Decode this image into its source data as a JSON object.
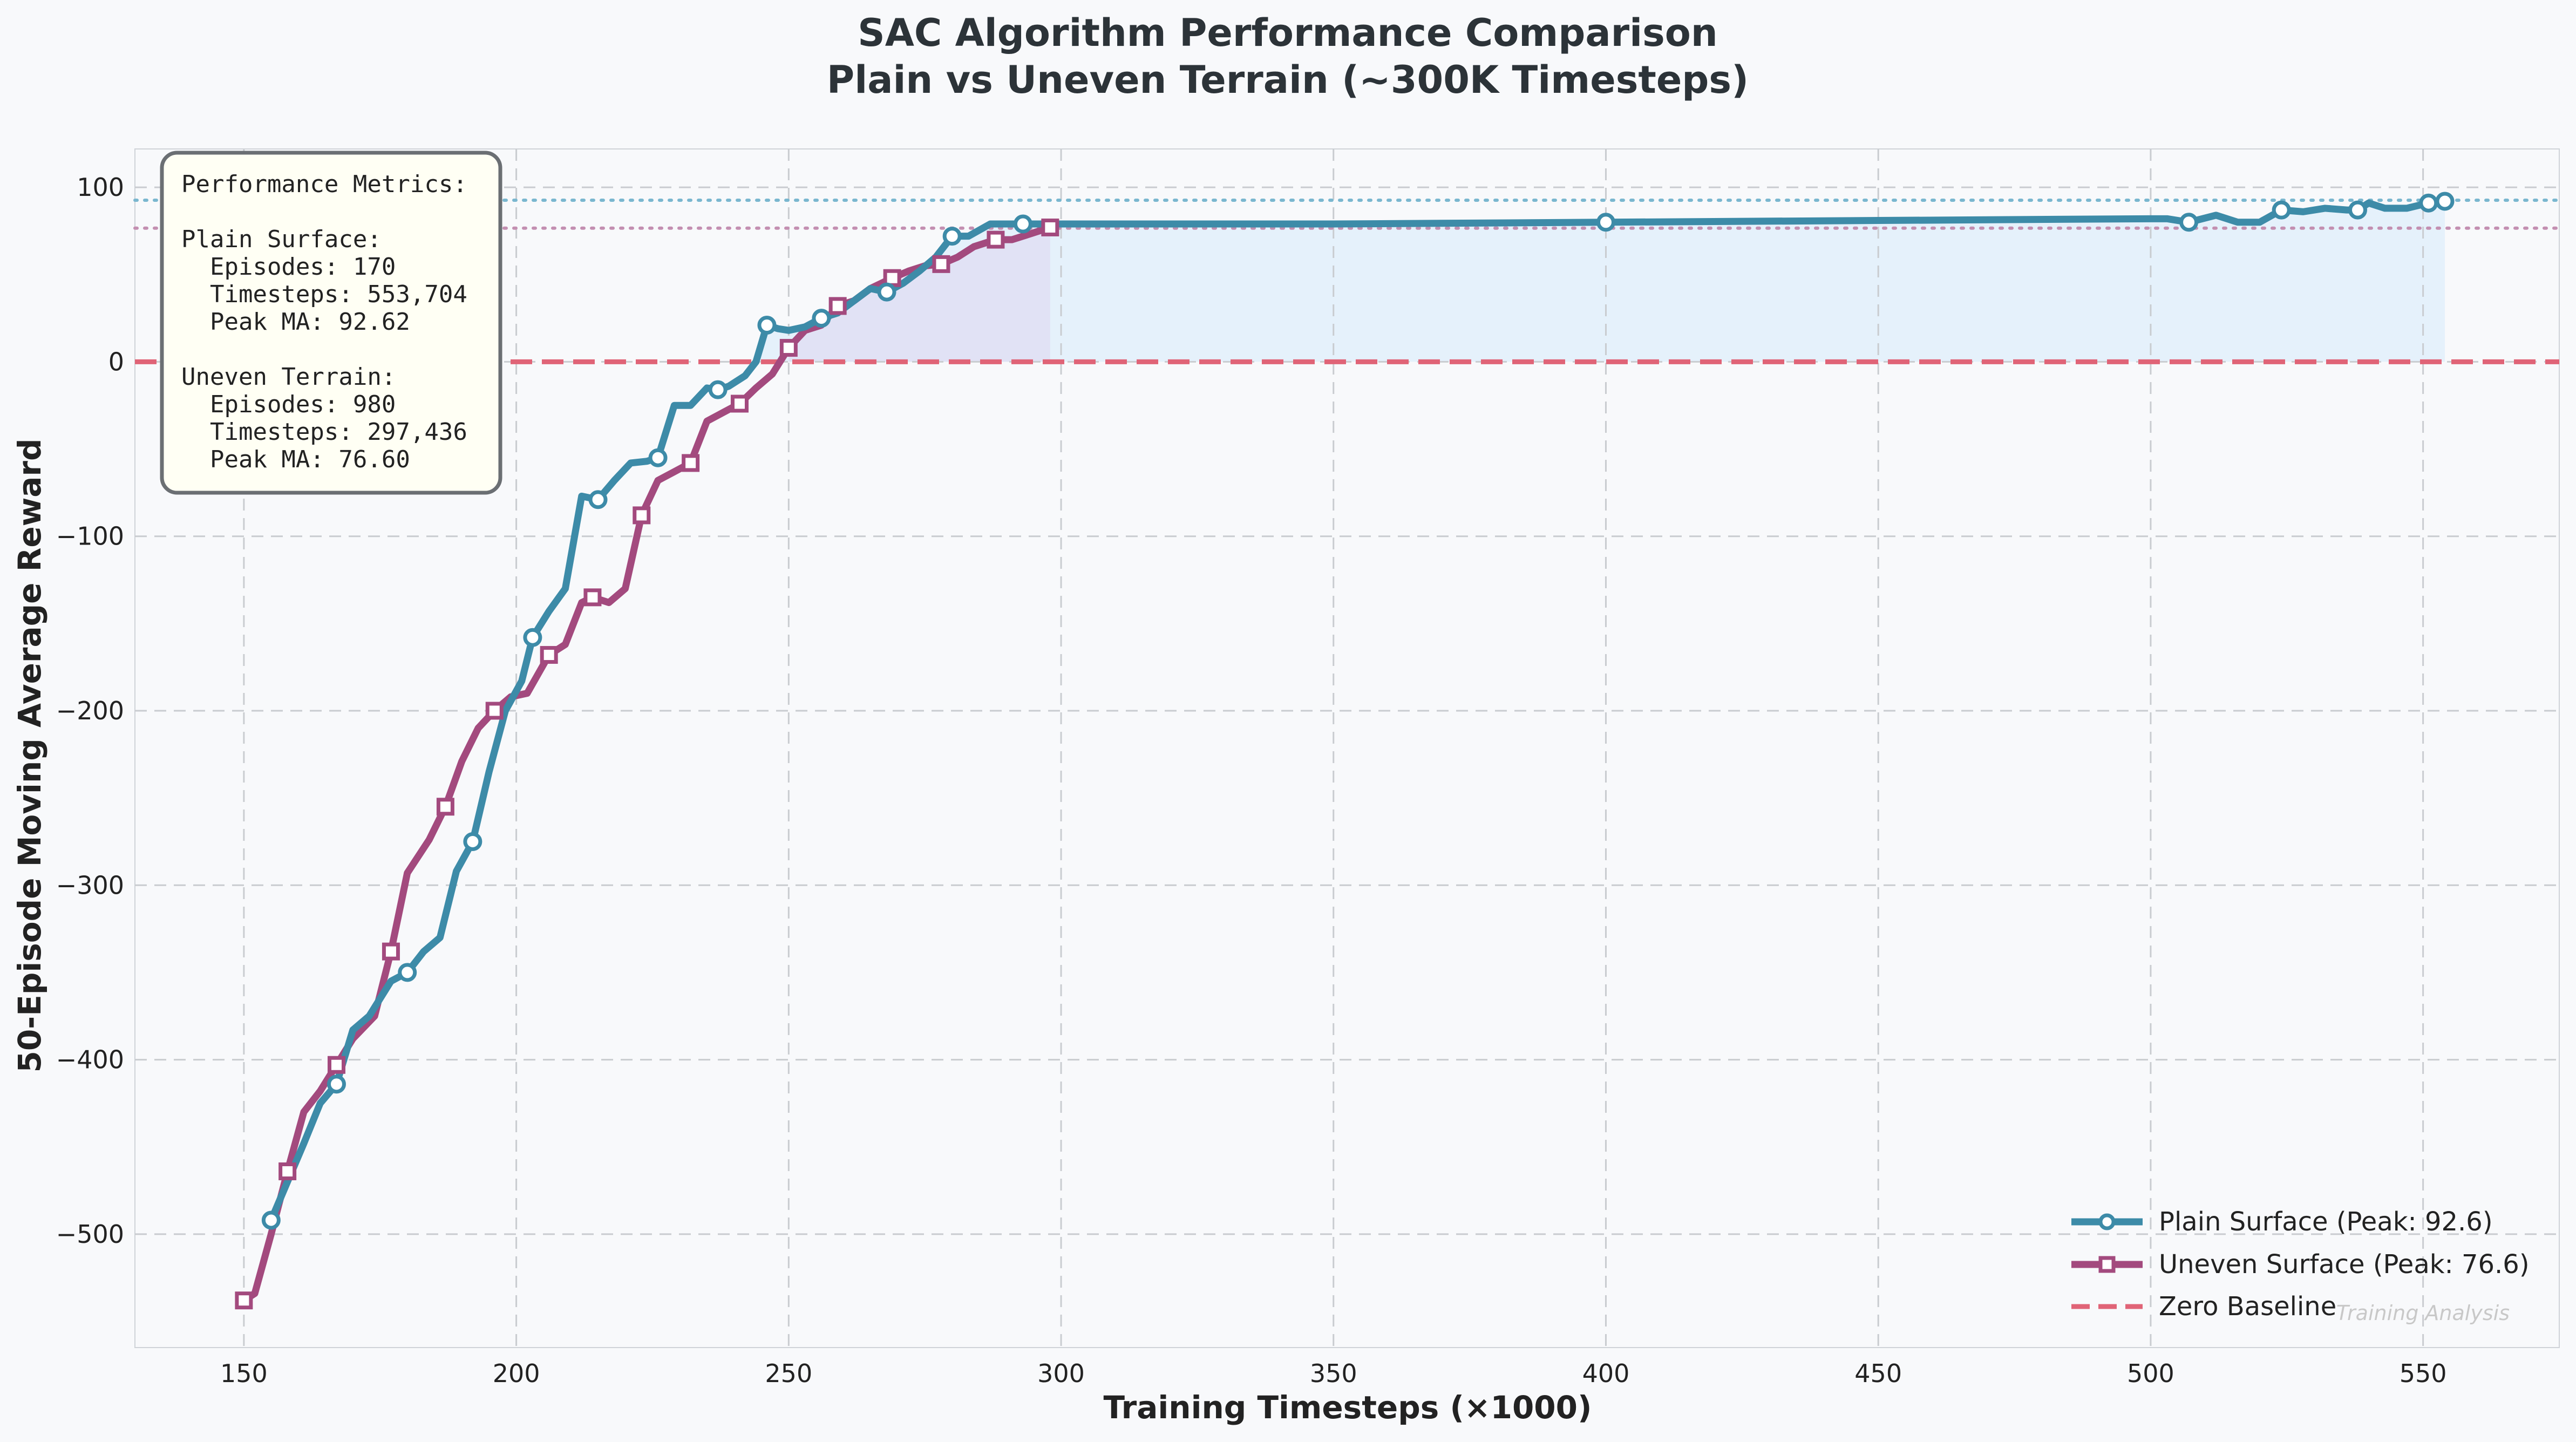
{
  "chart_data": {
    "type": "line",
    "title": "SAC Algorithm Performance Comparison",
    "subtitle": "Plain vs Uneven Terrain (~300K Timesteps)",
    "xlabel": "Training Timesteps (×1000)",
    "ylabel": "50-Episode Moving Average Reward",
    "xlim": [
      130,
      575
    ],
    "ylim": [
      -565,
      122
    ],
    "xticks": [
      150,
      200,
      250,
      300,
      350,
      400,
      450,
      500,
      550
    ],
    "yticks": [
      -500,
      -400,
      -300,
      -200,
      -100,
      0,
      100
    ],
    "xtick_labels": [
      "150",
      "200",
      "250",
      "300",
      "350",
      "400",
      "450",
      "500",
      "550"
    ],
    "ytick_labels": [
      "−500",
      "−400",
      "−300",
      "−200",
      "−100",
      "0",
      "100"
    ],
    "grid": true,
    "legend_position": "bottom-right",
    "series": [
      {
        "name": "Plain Surface (Peak: 92.6)",
        "color": "#3d8ba8",
        "marker": "circle",
        "peak": 92.62,
        "x": [
          155,
          158,
          161,
          164,
          167,
          170,
          173,
          177,
          180,
          183,
          186,
          189,
          192,
          195,
          198,
          201,
          203,
          206,
          209,
          212,
          215,
          218,
          221,
          224,
          226,
          229,
          232,
          235,
          237,
          239,
          242,
          244,
          246,
          248,
          250,
          253,
          256,
          259,
          262,
          265,
          268,
          271,
          274,
          277,
          280,
          283,
          287,
          290,
          293,
          296,
          300,
          350,
          400,
          450,
          500,
          503,
          507,
          512,
          516,
          520,
          524,
          528,
          532,
          536,
          538,
          540,
          543,
          547,
          551,
          554
        ],
        "y": [
          -492,
          -470,
          -448,
          -425,
          -414,
          -383,
          -375,
          -355,
          -350,
          -338,
          -330,
          -292,
          -275,
          -235,
          -200,
          -183,
          -158,
          -143,
          -130,
          -77,
          -79,
          -68,
          -58,
          -57,
          -55,
          -25,
          -25,
          -15,
          -16,
          -14,
          -8,
          0,
          21,
          19,
          18,
          20,
          25,
          28,
          35,
          42,
          40,
          45,
          52,
          60,
          72,
          72,
          79,
          79,
          79,
          79,
          79,
          79,
          80,
          81,
          82,
          82,
          80,
          84,
          80,
          80,
          87,
          86,
          88,
          87,
          87,
          91,
          88,
          88,
          91,
          92
        ]
      },
      {
        "name": "Uneven Surface (Peak: 76.6)",
        "color": "#a34a7e",
        "marker": "square",
        "peak": 76.6,
        "x": [
          150,
          152,
          155,
          158,
          161,
          164,
          167,
          170,
          174,
          177,
          180,
          184,
          187,
          190,
          193,
          196,
          199,
          202,
          206,
          209,
          212,
          214,
          217,
          220,
          223,
          226,
          229,
          232,
          235,
          238,
          241,
          244,
          247,
          250,
          253,
          256,
          259,
          262,
          265,
          269,
          272,
          275,
          278,
          281,
          284,
          288,
          291,
          294,
          298
        ],
        "y": [
          -538,
          -534,
          -500,
          -464,
          -430,
          -418,
          -403,
          -388,
          -375,
          -338,
          -293,
          -274,
          -255,
          -229,
          -210,
          -200,
          -192,
          -190,
          -168,
          -162,
          -138,
          -135,
          -138,
          -130,
          -88,
          -68,
          -63,
          -58,
          -34,
          -29,
          -24,
          -15,
          -7,
          8,
          18,
          21,
          32,
          35,
          42,
          48,
          52,
          55,
          56,
          60,
          66,
          70,
          70,
          73,
          77
        ]
      },
      {
        "name": "Zero Baseline",
        "color": "#e06477",
        "style": "dashed",
        "y": 0
      }
    ],
    "reference_lines": [
      {
        "y": 92.62,
        "color": "#7ab7cf",
        "style": "dotted"
      },
      {
        "y": 76.6,
        "color": "#c38fb1",
        "style": "dotted"
      }
    ],
    "metrics_box": {
      "lines": [
        "Performance Metrics:",
        "",
        "Plain Surface:",
        "  Episodes: 170",
        "  Timesteps: 553,704",
        "  Peak MA: 92.62",
        "",
        "Uneven Terrain:",
        "  Episodes: 980",
        "  Timesteps: 297,436",
        "  Peak MA: 76.60"
      ]
    },
    "watermark": "Training Analysis"
  }
}
